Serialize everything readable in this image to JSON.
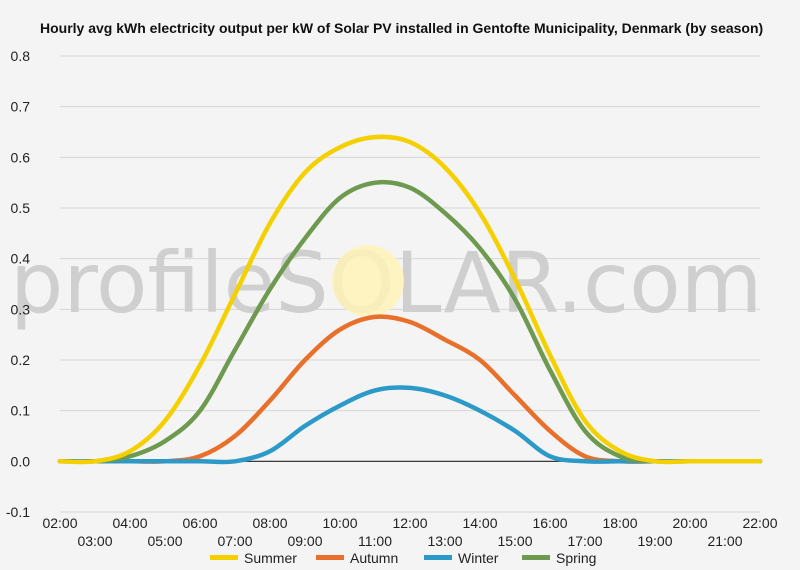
{
  "chart_data": {
    "type": "line",
    "title": "Hourly avg kWh electricity output per kW of Solar PV installed in Gentofte Municipality, Denmark (by season)",
    "xlabel": "",
    "ylabel": "",
    "watermark": "profileSOLAR.com",
    "x": [
      "02:00",
      "03:00",
      "04:00",
      "05:00",
      "06:00",
      "07:00",
      "08:00",
      "09:00",
      "10:00",
      "11:00",
      "12:00",
      "13:00",
      "14:00",
      "15:00",
      "16:00",
      "17:00",
      "18:00",
      "19:00",
      "20:00",
      "21:00",
      "22:00"
    ],
    "x_ticks_upper": [
      "02:00",
      "04:00",
      "06:00",
      "08:00",
      "10:00",
      "12:00",
      "14:00",
      "16:00",
      "18:00",
      "20:00",
      "22:00"
    ],
    "x_ticks_lower": [
      "03:00",
      "05:00",
      "07:00",
      "09:00",
      "11:00",
      "13:00",
      "15:00",
      "17:00",
      "19:00",
      "21:00"
    ],
    "ylim": [
      -0.1,
      0.8
    ],
    "y_ticks": [
      "0.8",
      "0.7",
      "0.6",
      "0.5",
      "0.4",
      "0.3",
      "0.2",
      "0.1",
      "0.0",
      "-0.1"
    ],
    "grid": true,
    "legend_position": "bottom",
    "series": [
      {
        "name": "Summer",
        "color": "#f5d000",
        "values": [
          0,
          0,
          0.02,
          0.08,
          0.19,
          0.33,
          0.47,
          0.57,
          0.62,
          0.64,
          0.63,
          0.58,
          0.49,
          0.36,
          0.21,
          0.08,
          0.02,
          0,
          0,
          0,
          0
        ]
      },
      {
        "name": "Autumn",
        "color": "#e8702a",
        "values": [
          0,
          0,
          0,
          0,
          0.01,
          0.05,
          0.12,
          0.2,
          0.26,
          0.285,
          0.275,
          0.24,
          0.2,
          0.13,
          0.06,
          0.01,
          0,
          0,
          0,
          0,
          0
        ]
      },
      {
        "name": "Winter",
        "color": "#2b9ac8",
        "values": [
          0,
          0,
          0,
          0,
          0,
          0,
          0.02,
          0.07,
          0.11,
          0.14,
          0.145,
          0.13,
          0.1,
          0.06,
          0.01,
          0,
          0,
          0,
          0,
          0,
          0
        ]
      },
      {
        "name": "Spring",
        "color": "#6e9a50",
        "values": [
          0,
          0,
          0.01,
          0.04,
          0.1,
          0.22,
          0.34,
          0.44,
          0.52,
          0.55,
          0.54,
          0.49,
          0.42,
          0.32,
          0.18,
          0.06,
          0.01,
          0,
          0,
          0,
          0
        ]
      }
    ]
  }
}
